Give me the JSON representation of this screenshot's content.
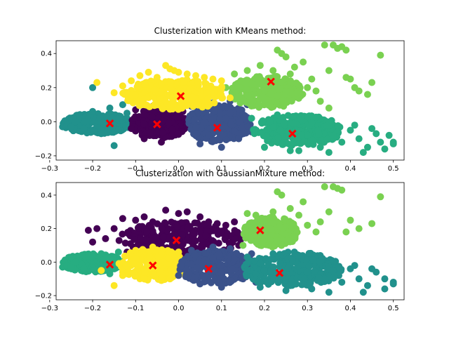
{
  "palette": {
    "c0": "#440154",
    "c1": "#3b528b",
    "c2": "#21918c",
    "c3": "#27ad81",
    "c4": "#7ad151",
    "c5": "#fde725",
    "center": "#ff0000",
    "axis": "#000000"
  },
  "chart_data": [
    {
      "type": "scatter",
      "title": "Clusterization with KMeans method:",
      "xlabel": "",
      "ylabel": "",
      "xlim": [
        -0.285,
        0.525
      ],
      "ylim": [
        -0.225,
        0.475
      ],
      "xticks": [
        -0.3,
        -0.2,
        -0.1,
        0.0,
        0.1,
        0.2,
        0.3,
        0.4,
        0.5
      ],
      "xtick_labels": [
        "−0.3",
        "−0.2",
        "−0.1",
        "0.0",
        "0.1",
        "0.2",
        "0.3",
        "0.4",
        "0.5"
      ],
      "yticks": [
        -0.2,
        0.0,
        0.2,
        0.4
      ],
      "ytick_labels": [
        "−0.2",
        "0.0",
        "0.2",
        "0.4"
      ],
      "grid": false,
      "clusters": [
        {
          "color": "#21918c",
          "blob": {
            "xmin": -0.27,
            "xmax": -0.11,
            "ymin": -0.07,
            "ymax": 0.05
          },
          "points": [
            [
              -0.27,
              -0.03
            ],
            [
              -0.26,
              -0.02
            ],
            [
              -0.25,
              -0.03
            ],
            [
              -0.24,
              0.0
            ],
            [
              -0.22,
              -0.04
            ],
            [
              -0.2,
              0.06
            ],
            [
              -0.18,
              -0.07
            ],
            [
              -0.16,
              0.08
            ],
            [
              -0.15,
              -0.14
            ],
            [
              -0.14,
              -0.05
            ],
            [
              -0.13,
              0.1
            ],
            [
              -0.2,
              0.2
            ],
            [
              -0.12,
              0.05
            ]
          ]
        },
        {
          "color": "#440154",
          "blob": {
            "xmin": -0.11,
            "xmax": 0.02,
            "ymin": -0.1,
            "ymax": 0.08
          },
          "points": [
            [
              -0.11,
              -0.04
            ],
            [
              -0.1,
              0.07
            ],
            [
              -0.08,
              -0.1
            ],
            [
              -0.06,
              0.09
            ],
            [
              -0.04,
              -0.12
            ],
            [
              -0.02,
              0.08
            ],
            [
              0.0,
              -0.07
            ],
            [
              0.01,
              0.06
            ]
          ]
        },
        {
          "color": "#3b528b",
          "blob": {
            "xmin": 0.02,
            "xmax": 0.17,
            "ymin": -0.12,
            "ymax": 0.1
          },
          "points": [
            [
              0.03,
              0.09
            ],
            [
              0.05,
              -0.13
            ],
            [
              0.08,
              0.11
            ],
            [
              0.1,
              -0.15
            ],
            [
              0.12,
              0.12
            ],
            [
              0.14,
              -0.1
            ],
            [
              0.16,
              0.1
            ],
            [
              0.17,
              -0.06
            ],
            [
              0.07,
              -0.08
            ],
            [
              0.11,
              0.02
            ]
          ]
        },
        {
          "color": "#27ad81",
          "blob": {
            "xmin": 0.17,
            "xmax": 0.38,
            "ymin": -0.14,
            "ymax": 0.04
          },
          "points": [
            [
              0.17,
              0.02
            ],
            [
              0.2,
              -0.15
            ],
            [
              0.23,
              0.04
            ],
            [
              0.26,
              -0.17
            ],
            [
              0.3,
              0.03
            ],
            [
              0.33,
              -0.15
            ],
            [
              0.36,
              -0.08
            ],
            [
              0.38,
              -0.12
            ],
            [
              0.4,
              -0.05
            ],
            [
              0.42,
              -0.1
            ],
            [
              0.44,
              -0.15
            ],
            [
              0.46,
              -0.07
            ],
            [
              0.47,
              -0.12
            ],
            [
              0.49,
              -0.08
            ],
            [
              0.5,
              -0.13
            ],
            [
              0.5,
              -0.12
            ],
            [
              0.48,
              -0.16
            ],
            [
              0.35,
              -0.18
            ],
            [
              0.28,
              -0.17
            ],
            [
              0.41,
              -0.02
            ],
            [
              0.45,
              -0.04
            ],
            [
              0.43,
              -0.18
            ]
          ]
        },
        {
          "color": "#7ad151",
          "blob": {
            "xmin": 0.12,
            "xmax": 0.29,
            "ymin": 0.08,
            "ymax": 0.27
          },
          "points": [
            [
              0.11,
              0.2
            ],
            [
              0.13,
              0.28
            ],
            [
              0.16,
              0.3
            ],
            [
              0.17,
              0.22
            ],
            [
              0.19,
              0.33
            ],
            [
              0.2,
              0.18
            ],
            [
              0.22,
              0.3
            ],
            [
              0.23,
              0.42
            ],
            [
              0.24,
              0.4
            ],
            [
              0.25,
              0.38
            ],
            [
              0.26,
              0.28
            ],
            [
              0.27,
              0.32
            ],
            [
              0.29,
              0.35
            ],
            [
              0.3,
              0.2
            ],
            [
              0.31,
              0.25
            ],
            [
              0.32,
              0.18
            ],
            [
              0.34,
              0.45
            ],
            [
              0.35,
              0.3
            ],
            [
              0.36,
              0.45
            ],
            [
              0.37,
              0.43
            ],
            [
              0.38,
              0.44
            ],
            [
              0.39,
              0.42
            ],
            [
              0.4,
              0.25
            ],
            [
              0.41,
              0.2
            ],
            [
              0.42,
              0.18
            ],
            [
              0.45,
              0.23
            ],
            [
              0.47,
              0.39
            ],
            [
              0.44,
              0.16
            ],
            [
              0.39,
              0.26
            ],
            [
              0.33,
              0.12
            ],
            [
              0.35,
              0.08
            ]
          ]
        },
        {
          "color": "#fde725",
          "blob": {
            "xmin": -0.13,
            "xmax": 0.12,
            "ymin": 0.07,
            "ymax": 0.25
          },
          "points": [
            [
              -0.19,
              0.23
            ],
            [
              -0.15,
              0.17
            ],
            [
              -0.13,
              0.21
            ],
            [
              -0.11,
              0.24
            ],
            [
              -0.09,
              0.27
            ],
            [
              -0.07,
              0.29
            ],
            [
              -0.05,
              0.26
            ],
            [
              -0.04,
              0.22
            ],
            [
              -0.02,
              0.31
            ],
            [
              0.0,
              0.29
            ],
            [
              -0.03,
              0.33
            ],
            [
              -0.01,
              0.3
            ],
            [
              0.02,
              0.28
            ],
            [
              0.04,
              0.27
            ],
            [
              0.06,
              0.26
            ],
            [
              0.08,
              0.25
            ],
            [
              0.1,
              0.24
            ],
            [
              0.12,
              0.14
            ]
          ]
        }
      ],
      "centers": [
        [
          -0.16,
          -0.01
        ],
        [
          -0.05,
          -0.015
        ],
        [
          0.09,
          -0.035
        ],
        [
          0.265,
          -0.07
        ],
        [
          0.215,
          0.235
        ],
        [
          0.005,
          0.15
        ]
      ]
    },
    {
      "type": "scatter",
      "title": "Clusterization with GaussianMixture method:",
      "xlabel": "",
      "ylabel": "",
      "xlim": [
        -0.285,
        0.525
      ],
      "ylim": [
        -0.225,
        0.475
      ],
      "xticks": [
        -0.3,
        -0.2,
        -0.1,
        0.0,
        0.1,
        0.2,
        0.3,
        0.4,
        0.5
      ],
      "xtick_labels": [
        "−0.3",
        "−0.2",
        "−0.1",
        "0.0",
        "0.1",
        "0.2",
        "0.3",
        "0.4",
        "0.5"
      ],
      "yticks": [
        -0.2,
        0.0,
        0.2,
        0.4
      ],
      "ytick_labels": [
        "−0.2",
        "0.0",
        "0.2",
        "0.4"
      ],
      "grid": false,
      "clusters": [
        {
          "color": "#440154",
          "blob": {
            "xmin": -0.14,
            "xmax": 0.15,
            "ymin": 0.04,
            "ymax": 0.24
          },
          "points": [
            [
              -0.21,
              0.19
            ],
            [
              -0.2,
              0.12
            ],
            [
              -0.19,
              0.2
            ],
            [
              -0.17,
              0.14
            ],
            [
              -0.15,
              0.2
            ],
            [
              -0.13,
              0.26
            ],
            [
              -0.1,
              0.25
            ],
            [
              -0.08,
              0.27
            ],
            [
              -0.06,
              0.24
            ],
            [
              -0.03,
              0.31
            ],
            [
              0.0,
              0.29
            ],
            [
              0.02,
              0.3
            ],
            [
              0.05,
              0.27
            ],
            [
              0.07,
              0.24
            ],
            [
              0.09,
              0.23
            ],
            [
              0.11,
              0.22
            ],
            [
              0.13,
              0.24
            ],
            [
              0.16,
              0.2
            ],
            [
              -0.12,
              0.06
            ],
            [
              0.14,
              0.1
            ]
          ]
        },
        {
          "color": "#7ad151",
          "blob": {
            "xmin": 0.15,
            "xmax": 0.28,
            "ymin": 0.09,
            "ymax": 0.27
          },
          "points": [
            [
              0.15,
              0.1
            ],
            [
              0.16,
              0.29
            ],
            [
              0.18,
              0.28
            ],
            [
              0.2,
              0.25
            ],
            [
              0.22,
              0.3
            ],
            [
              0.23,
              0.42
            ],
            [
              0.24,
              0.4
            ],
            [
              0.26,
              0.32
            ],
            [
              0.28,
              0.28
            ],
            [
              0.3,
              0.22
            ],
            [
              0.32,
              0.18
            ],
            [
              0.34,
              0.45
            ],
            [
              0.35,
              0.3
            ],
            [
              0.36,
              0.45
            ],
            [
              0.37,
              0.44
            ],
            [
              0.38,
              0.43
            ],
            [
              0.4,
              0.25
            ],
            [
              0.42,
              0.2
            ],
            [
              0.45,
              0.23
            ],
            [
              0.47,
              0.39
            ],
            [
              0.39,
              0.18
            ],
            [
              0.33,
              0.24
            ],
            [
              0.29,
              0.36
            ]
          ]
        },
        {
          "color": "#27ad81",
          "blob": {
            "xmin": -0.27,
            "xmax": -0.13,
            "ymin": -0.06,
            "ymax": 0.05
          },
          "points": [
            [
              -0.27,
              -0.03
            ],
            [
              -0.26,
              -0.02
            ],
            [
              -0.25,
              -0.03
            ],
            [
              -0.24,
              0.0
            ],
            [
              -0.22,
              -0.04
            ],
            [
              -0.2,
              0.03
            ],
            [
              -0.18,
              0.05
            ],
            [
              -0.16,
              -0.07
            ],
            [
              -0.14,
              0.06
            ]
          ]
        },
        {
          "color": "#fde725",
          "blob": {
            "xmin": -0.14,
            "xmax": 0.02,
            "ymin": -0.11,
            "ymax": 0.08
          },
          "points": [
            [
              -0.18,
              -0.05
            ],
            [
              -0.15,
              -0.14
            ],
            [
              -0.13,
              -0.08
            ],
            [
              -0.1,
              0.07
            ],
            [
              -0.08,
              -0.1
            ],
            [
              -0.06,
              0.09
            ],
            [
              -0.04,
              -0.11
            ],
            [
              -0.02,
              -0.1
            ],
            [
              0.0,
              0.06
            ],
            [
              0.02,
              -0.05
            ]
          ]
        },
        {
          "color": "#3b528b",
          "blob": {
            "xmin": 0.0,
            "xmax": 0.18,
            "ymin": -0.13,
            "ymax": 0.07
          },
          "points": [
            [
              0.0,
              -0.08
            ],
            [
              0.03,
              0.07
            ],
            [
              0.05,
              -0.13
            ],
            [
              0.08,
              0.09
            ],
            [
              0.1,
              -0.15
            ],
            [
              0.12,
              0.08
            ],
            [
              0.15,
              -0.1
            ],
            [
              0.17,
              0.05
            ],
            [
              0.18,
              -0.12
            ]
          ]
        },
        {
          "color": "#21918c",
          "blob": {
            "xmin": 0.15,
            "xmax": 0.38,
            "ymin": -0.15,
            "ymax": 0.06
          },
          "points": [
            [
              0.16,
              0.03
            ],
            [
              0.19,
              -0.15
            ],
            [
              0.22,
              0.05
            ],
            [
              0.25,
              -0.17
            ],
            [
              0.28,
              0.04
            ],
            [
              0.31,
              -0.16
            ],
            [
              0.34,
              -0.1
            ],
            [
              0.36,
              -0.05
            ],
            [
              0.38,
              -0.12
            ],
            [
              0.4,
              -0.04
            ],
            [
              0.42,
              -0.1
            ],
            [
              0.44,
              -0.14
            ],
            [
              0.46,
              -0.06
            ],
            [
              0.48,
              -0.1
            ],
            [
              0.5,
              -0.12
            ],
            [
              0.5,
              -0.13
            ],
            [
              0.48,
              -0.16
            ],
            [
              0.43,
              -0.18
            ],
            [
              0.35,
              -0.18
            ],
            [
              0.29,
              -0.13
            ],
            [
              0.41,
              -0.02
            ],
            [
              0.45,
              -0.04
            ]
          ]
        }
      ],
      "centers": [
        [
          -0.16,
          -0.015
        ],
        [
          -0.06,
          -0.02
        ],
        [
          -0.005,
          0.13
        ],
        [
          0.07,
          -0.04
        ],
        [
          0.19,
          0.19
        ],
        [
          0.235,
          -0.065
        ]
      ]
    }
  ]
}
